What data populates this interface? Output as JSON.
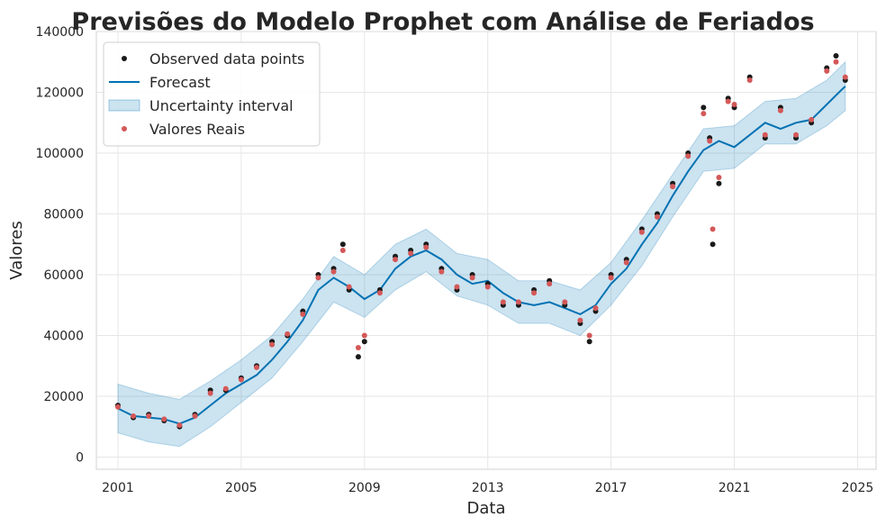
{
  "chart_data": {
    "type": "line",
    "title": "Previsões do Modelo Prophet com Análise de Feriados",
    "xlabel": "Data",
    "ylabel": "Valores",
    "xlim": [
      2000.3,
      2025.6
    ],
    "ylim": [
      -4000,
      140000
    ],
    "xticks": [
      2001,
      2005,
      2009,
      2013,
      2017,
      2021,
      2025
    ],
    "yticks": [
      0,
      20000,
      40000,
      60000,
      80000,
      100000,
      120000,
      140000
    ],
    "grid": true,
    "legend_position": "top-left",
    "legend": [
      {
        "label": "Observed data points",
        "marker": "dot",
        "color": "#1a1a1a"
      },
      {
        "label": "Forecast",
        "marker": "line",
        "color": "#0072B2"
      },
      {
        "label": "Uncertainty interval",
        "marker": "patch",
        "color": "#0072B2"
      },
      {
        "label": "Valores Reais",
        "marker": "dot",
        "color": "#d45858"
      }
    ],
    "series": [
      {
        "name": "Forecast",
        "x": [
          2001.0,
          2001.5,
          2002.0,
          2002.5,
          2003.0,
          2003.5,
          2004.0,
          2004.5,
          2005.0,
          2005.5,
          2006.0,
          2006.5,
          2007.0,
          2007.5,
          2008.0,
          2008.5,
          2009.0,
          2009.5,
          2010.0,
          2010.5,
          2011.0,
          2011.5,
          2012.0,
          2012.5,
          2013.0,
          2013.5,
          2014.0,
          2014.5,
          2015.0,
          2015.5,
          2016.0,
          2016.5,
          2017.0,
          2017.5,
          2018.0,
          2018.5,
          2019.0,
          2019.5,
          2020.0,
          2020.5,
          2021.0,
          2021.5,
          2022.0,
          2022.5,
          2023.0,
          2023.5,
          2024.0,
          2024.5,
          2024.6
        ],
        "values": [
          16000,
          13500,
          13000,
          12500,
          11000,
          13000,
          17000,
          21000,
          24000,
          27000,
          32000,
          38000,
          45000,
          55000,
          59000,
          56000,
          52000,
          55000,
          62000,
          66000,
          68000,
          65000,
          60000,
          57000,
          58000,
          54000,
          51000,
          50000,
          51000,
          49000,
          47000,
          50000,
          57000,
          62000,
          70000,
          77000,
          86000,
          94000,
          101000,
          104000,
          102000,
          106000,
          110000,
          108000,
          110000,
          111000,
          116000,
          121000,
          122000
        ]
      },
      {
        "name": "Observed data points",
        "x": [
          2001.0,
          2001.5,
          2002.0,
          2002.5,
          2003.0,
          2003.5,
          2004.0,
          2004.5,
          2005.0,
          2005.5,
          2006.0,
          2006.5,
          2007.0,
          2007.5,
          2008.0,
          2008.3,
          2008.5,
          2008.8,
          2009.0,
          2009.5,
          2010.0,
          2010.5,
          2011.0,
          2011.5,
          2012.0,
          2012.5,
          2013.0,
          2013.5,
          2014.0,
          2014.5,
          2015.0,
          2015.5,
          2016.0,
          2016.3,
          2016.5,
          2017.0,
          2017.5,
          2018.0,
          2018.5,
          2019.0,
          2019.5,
          2020.0,
          2020.2,
          2020.3,
          2020.5,
          2020.8,
          2021.0,
          2021.5,
          2022.0,
          2022.5,
          2023.0,
          2023.5,
          2024.0,
          2024.3,
          2024.6
        ],
        "values": [
          17000,
          13000,
          14000,
          12000,
          10000,
          14000,
          22000,
          22000,
          26000,
          30000,
          38000,
          40000,
          48000,
          60000,
          62000,
          70000,
          55000,
          33000,
          38000,
          55000,
          66000,
          68000,
          70000,
          62000,
          55000,
          60000,
          57000,
          50000,
          50000,
          55000,
          58000,
          50000,
          44000,
          38000,
          48000,
          60000,
          65000,
          75000,
          80000,
          90000,
          100000,
          115000,
          105000,
          70000,
          90000,
          118000,
          115000,
          125000,
          105000,
          115000,
          105000,
          110000,
          128000,
          132000,
          124000
        ]
      },
      {
        "name": "Valores Reais",
        "x": [
          2001.0,
          2001.5,
          2002.0,
          2002.5,
          2003.0,
          2003.5,
          2004.0,
          2004.5,
          2005.0,
          2005.5,
          2006.0,
          2006.5,
          2007.0,
          2007.5,
          2008.0,
          2008.3,
          2008.5,
          2008.8,
          2009.0,
          2009.5,
          2010.0,
          2010.5,
          2011.0,
          2011.5,
          2012.0,
          2012.5,
          2013.0,
          2013.5,
          2014.0,
          2014.5,
          2015.0,
          2015.5,
          2016.0,
          2016.3,
          2016.5,
          2017.0,
          2017.5,
          2018.0,
          2018.5,
          2019.0,
          2019.5,
          2020.0,
          2020.2,
          2020.3,
          2020.5,
          2020.8,
          2021.0,
          2021.5,
          2022.0,
          2022.5,
          2023.0,
          2023.5,
          2024.0,
          2024.3,
          2024.6
        ],
        "values": [
          16500,
          13500,
          13500,
          12500,
          10500,
          13500,
          21000,
          22500,
          25500,
          29500,
          37000,
          40500,
          47000,
          59000,
          61000,
          68000,
          56000,
          36000,
          40000,
          54000,
          65000,
          67000,
          69000,
          61000,
          56000,
          59000,
          56000,
          51000,
          51000,
          54000,
          57000,
          51000,
          45000,
          40000,
          49000,
          59000,
          64000,
          74000,
          79000,
          89000,
          99000,
          113000,
          104000,
          75000,
          92000,
          117000,
          116000,
          124000,
          106000,
          114000,
          106000,
          111000,
          127000,
          130000,
          125000
        ]
      }
    ],
    "uncertainty_interval": {
      "x": [
        2001.0,
        2002.0,
        2003.0,
        2004.0,
        2005.0,
        2006.0,
        2007.0,
        2008.0,
        2009.0,
        2010.0,
        2011.0,
        2012.0,
        2013.0,
        2014.0,
        2015.0,
        2016.0,
        2017.0,
        2018.0,
        2019.0,
        2020.0,
        2021.0,
        2022.0,
        2023.0,
        2024.0,
        2024.6
      ],
      "lower": [
        8000,
        5000,
        3500,
        10000,
        18000,
        26000,
        38000,
        51000,
        46000,
        55000,
        61000,
        53000,
        50000,
        44000,
        44000,
        40000,
        50000,
        63000,
        79000,
        94000,
        95000,
        103000,
        103000,
        109000,
        114000
      ],
      "upper": [
        24000,
        21000,
        19000,
        25000,
        32000,
        40000,
        52000,
        66000,
        60000,
        70000,
        75000,
        67000,
        65000,
        58000,
        58000,
        55000,
        64000,
        78000,
        93000,
        108000,
        109000,
        117000,
        118000,
        124000,
        130000
      ]
    }
  }
}
